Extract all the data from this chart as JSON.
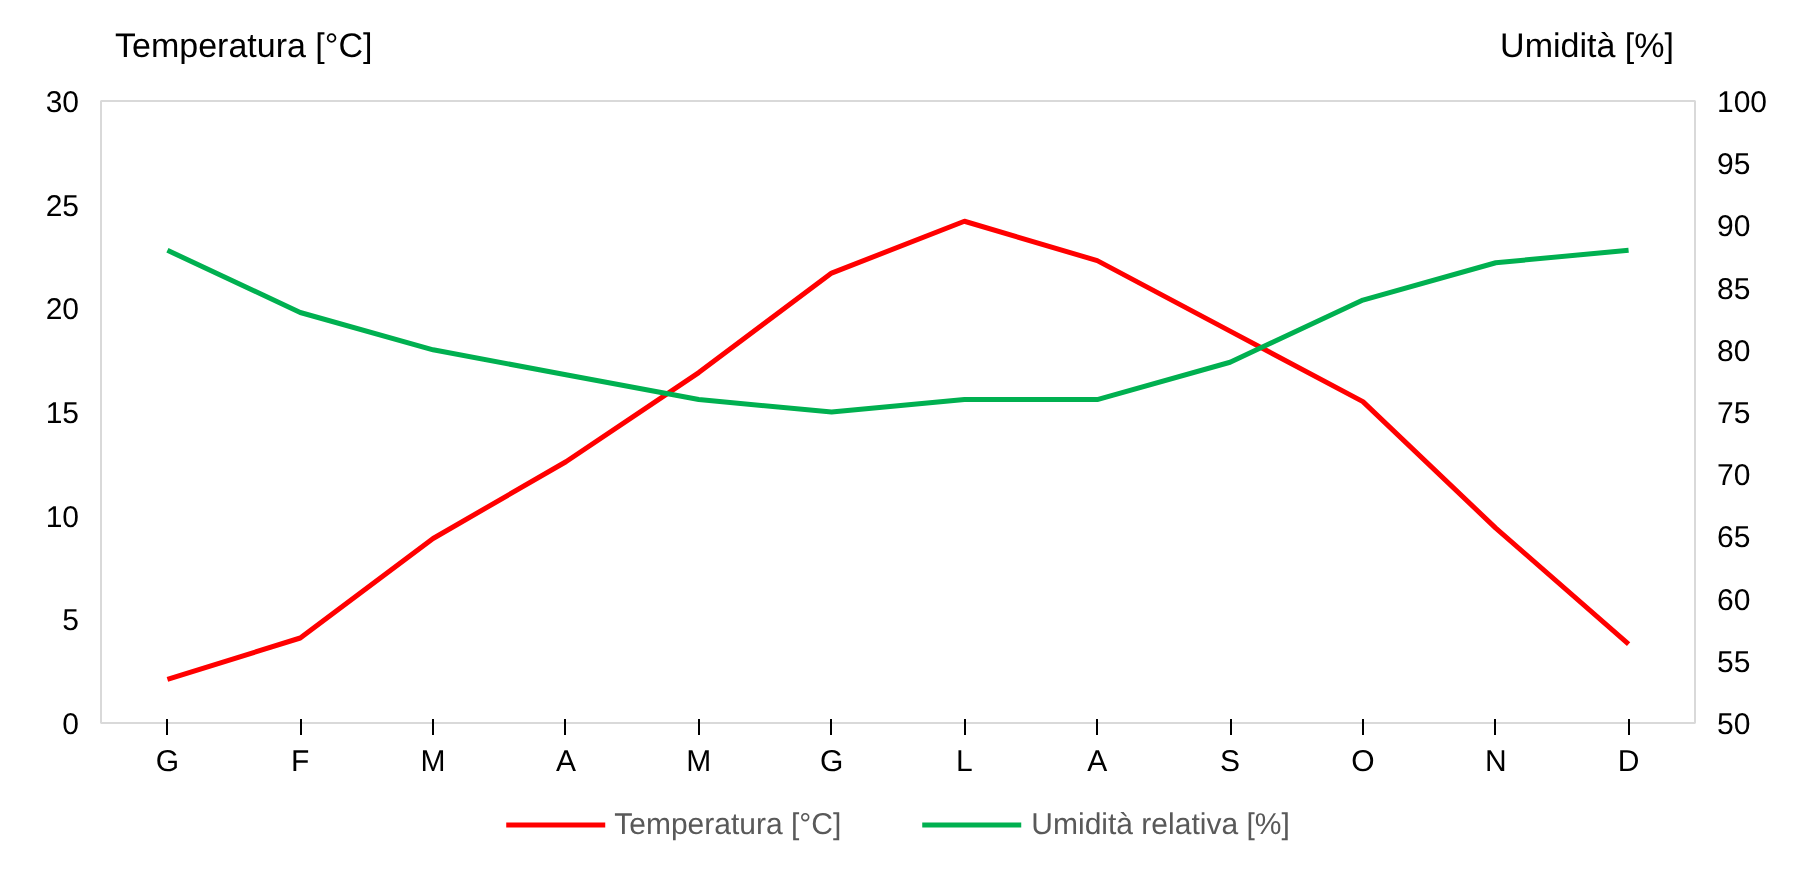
{
  "chart_data": {
    "type": "line",
    "categories": [
      "G",
      "F",
      "M",
      "A",
      "M",
      "G",
      "L",
      "A",
      "S",
      "O",
      "N",
      "D"
    ],
    "ylabel": "Temperatura [°C]",
    "y2label": "Umidità [%]",
    "series": [
      {
        "name": "Temperatura [°C]",
        "color": "#ff0000",
        "values": [
          2.1,
          4.1,
          8.9,
          12.6,
          16.9,
          21.7,
          24.2,
          22.3,
          18.9,
          15.5,
          9.4,
          3.8
        ]
      },
      {
        "name": "Umidità relativa [%]",
        "color": "#00b050",
        "axis": "y2",
        "values": [
          88,
          83,
          80,
          78,
          76,
          75,
          76,
          76,
          79,
          84,
          87,
          88
        ]
      }
    ],
    "ylim": [
      0,
      30
    ],
    "yticks": [
      0,
      5,
      10,
      15,
      20,
      25,
      30
    ],
    "y2lim": [
      50,
      100
    ],
    "y2ticks": [
      50,
      55,
      60,
      65,
      70,
      75,
      80,
      85,
      90,
      95,
      100
    ],
    "grid": false,
    "legend": "bottom",
    "marker": "none",
    "line_style": "solid"
  }
}
